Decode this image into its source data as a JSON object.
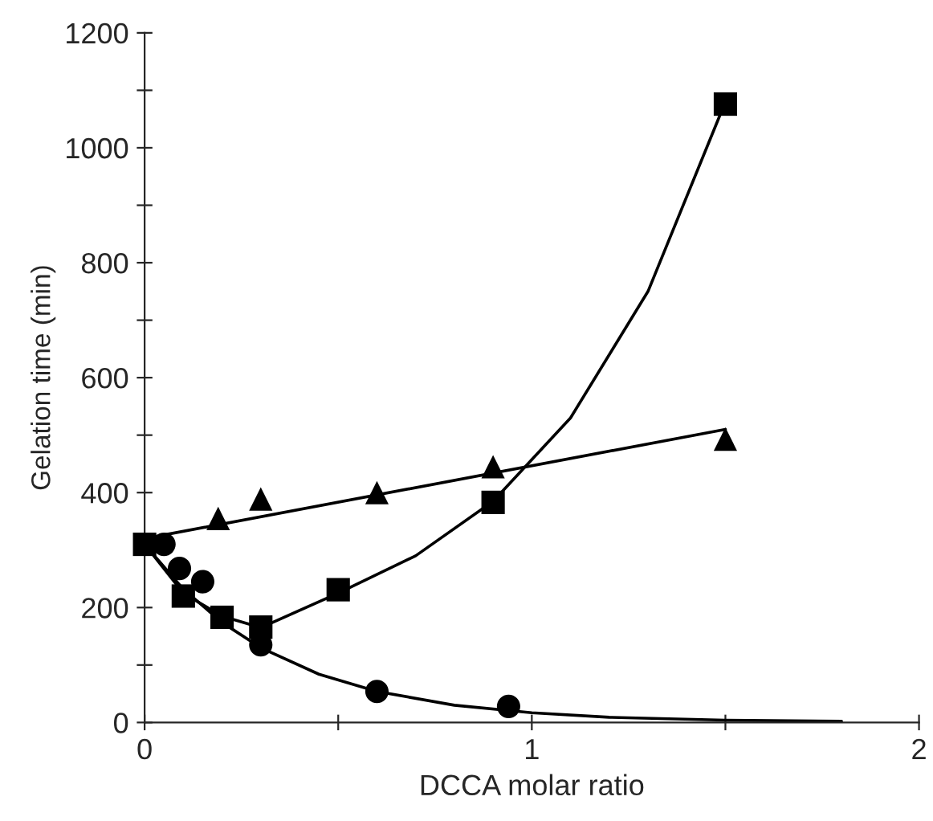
{
  "chart_data": {
    "type": "scatter",
    "xlabel": "DCCA molar ratio",
    "ylabel": "Gelation time (min)",
    "xlim": [
      0,
      2
    ],
    "ylim": [
      0,
      1200
    ],
    "xticks": [
      0,
      {
        "value": 0.5,
        "label": null
      },
      1,
      {
        "value": 1.5,
        "label": null
      },
      2
    ],
    "yticks": [
      0,
      {
        "value": 100,
        "label": null
      },
      200,
      {
        "value": 300,
        "label": null
      },
      400,
      {
        "value": 500,
        "label": null
      },
      600,
      {
        "value": 700,
        "label": null
      },
      800,
      {
        "value": 900,
        "label": null
      },
      1000,
      {
        "value": 1100,
        "label": null
      },
      1200
    ],
    "grid": false,
    "legend": false,
    "series": [
      {
        "marker": "circle",
        "color": "#000000",
        "x": [
          0.05,
          0.09,
          0.15,
          0.3,
          0.6,
          0.94
        ],
        "values": [
          310,
          268,
          245,
          135,
          54,
          28
        ]
      },
      {
        "marker": "square",
        "color": "#000000",
        "x": [
          0,
          0.1,
          0.2,
          0.3,
          0.5,
          0.9,
          1.5
        ],
        "values": [
          310,
          220,
          183,
          166,
          231,
          383,
          1076
        ]
      },
      {
        "marker": "triangle",
        "color": "#000000",
        "x": [
          0.19,
          0.3,
          0.6,
          0.9,
          1.5
        ],
        "values": [
          355,
          389,
          400,
          445,
          493
        ]
      },
      {
        "type": "line",
        "marker": "none",
        "line_style": "solid",
        "color": "#000000",
        "x": [
          0,
          0.1,
          0.2,
          0.3,
          0.45,
          0.6,
          0.8,
          1.0,
          1.2,
          1.5,
          1.8
        ],
        "values": [
          310,
          232,
          174,
          130,
          84,
          54,
          30,
          17,
          9,
          4,
          2
        ]
      },
      {
        "type": "line",
        "marker": "none",
        "line_style": "solid",
        "color": "#000000",
        "x": [
          0,
          0.1,
          0.2,
          0.3,
          0.5,
          0.7,
          0.9,
          1.1,
          1.3,
          1.5
        ],
        "values": [
          310,
          225,
          185,
          165,
          225,
          290,
          385,
          530,
          750,
          1080
        ]
      },
      {
        "type": "line",
        "marker": "none",
        "line_style": "solid",
        "color": "#000000",
        "x": [
          0,
          1.5
        ],
        "values": [
          320,
          510
        ]
      }
    ]
  }
}
